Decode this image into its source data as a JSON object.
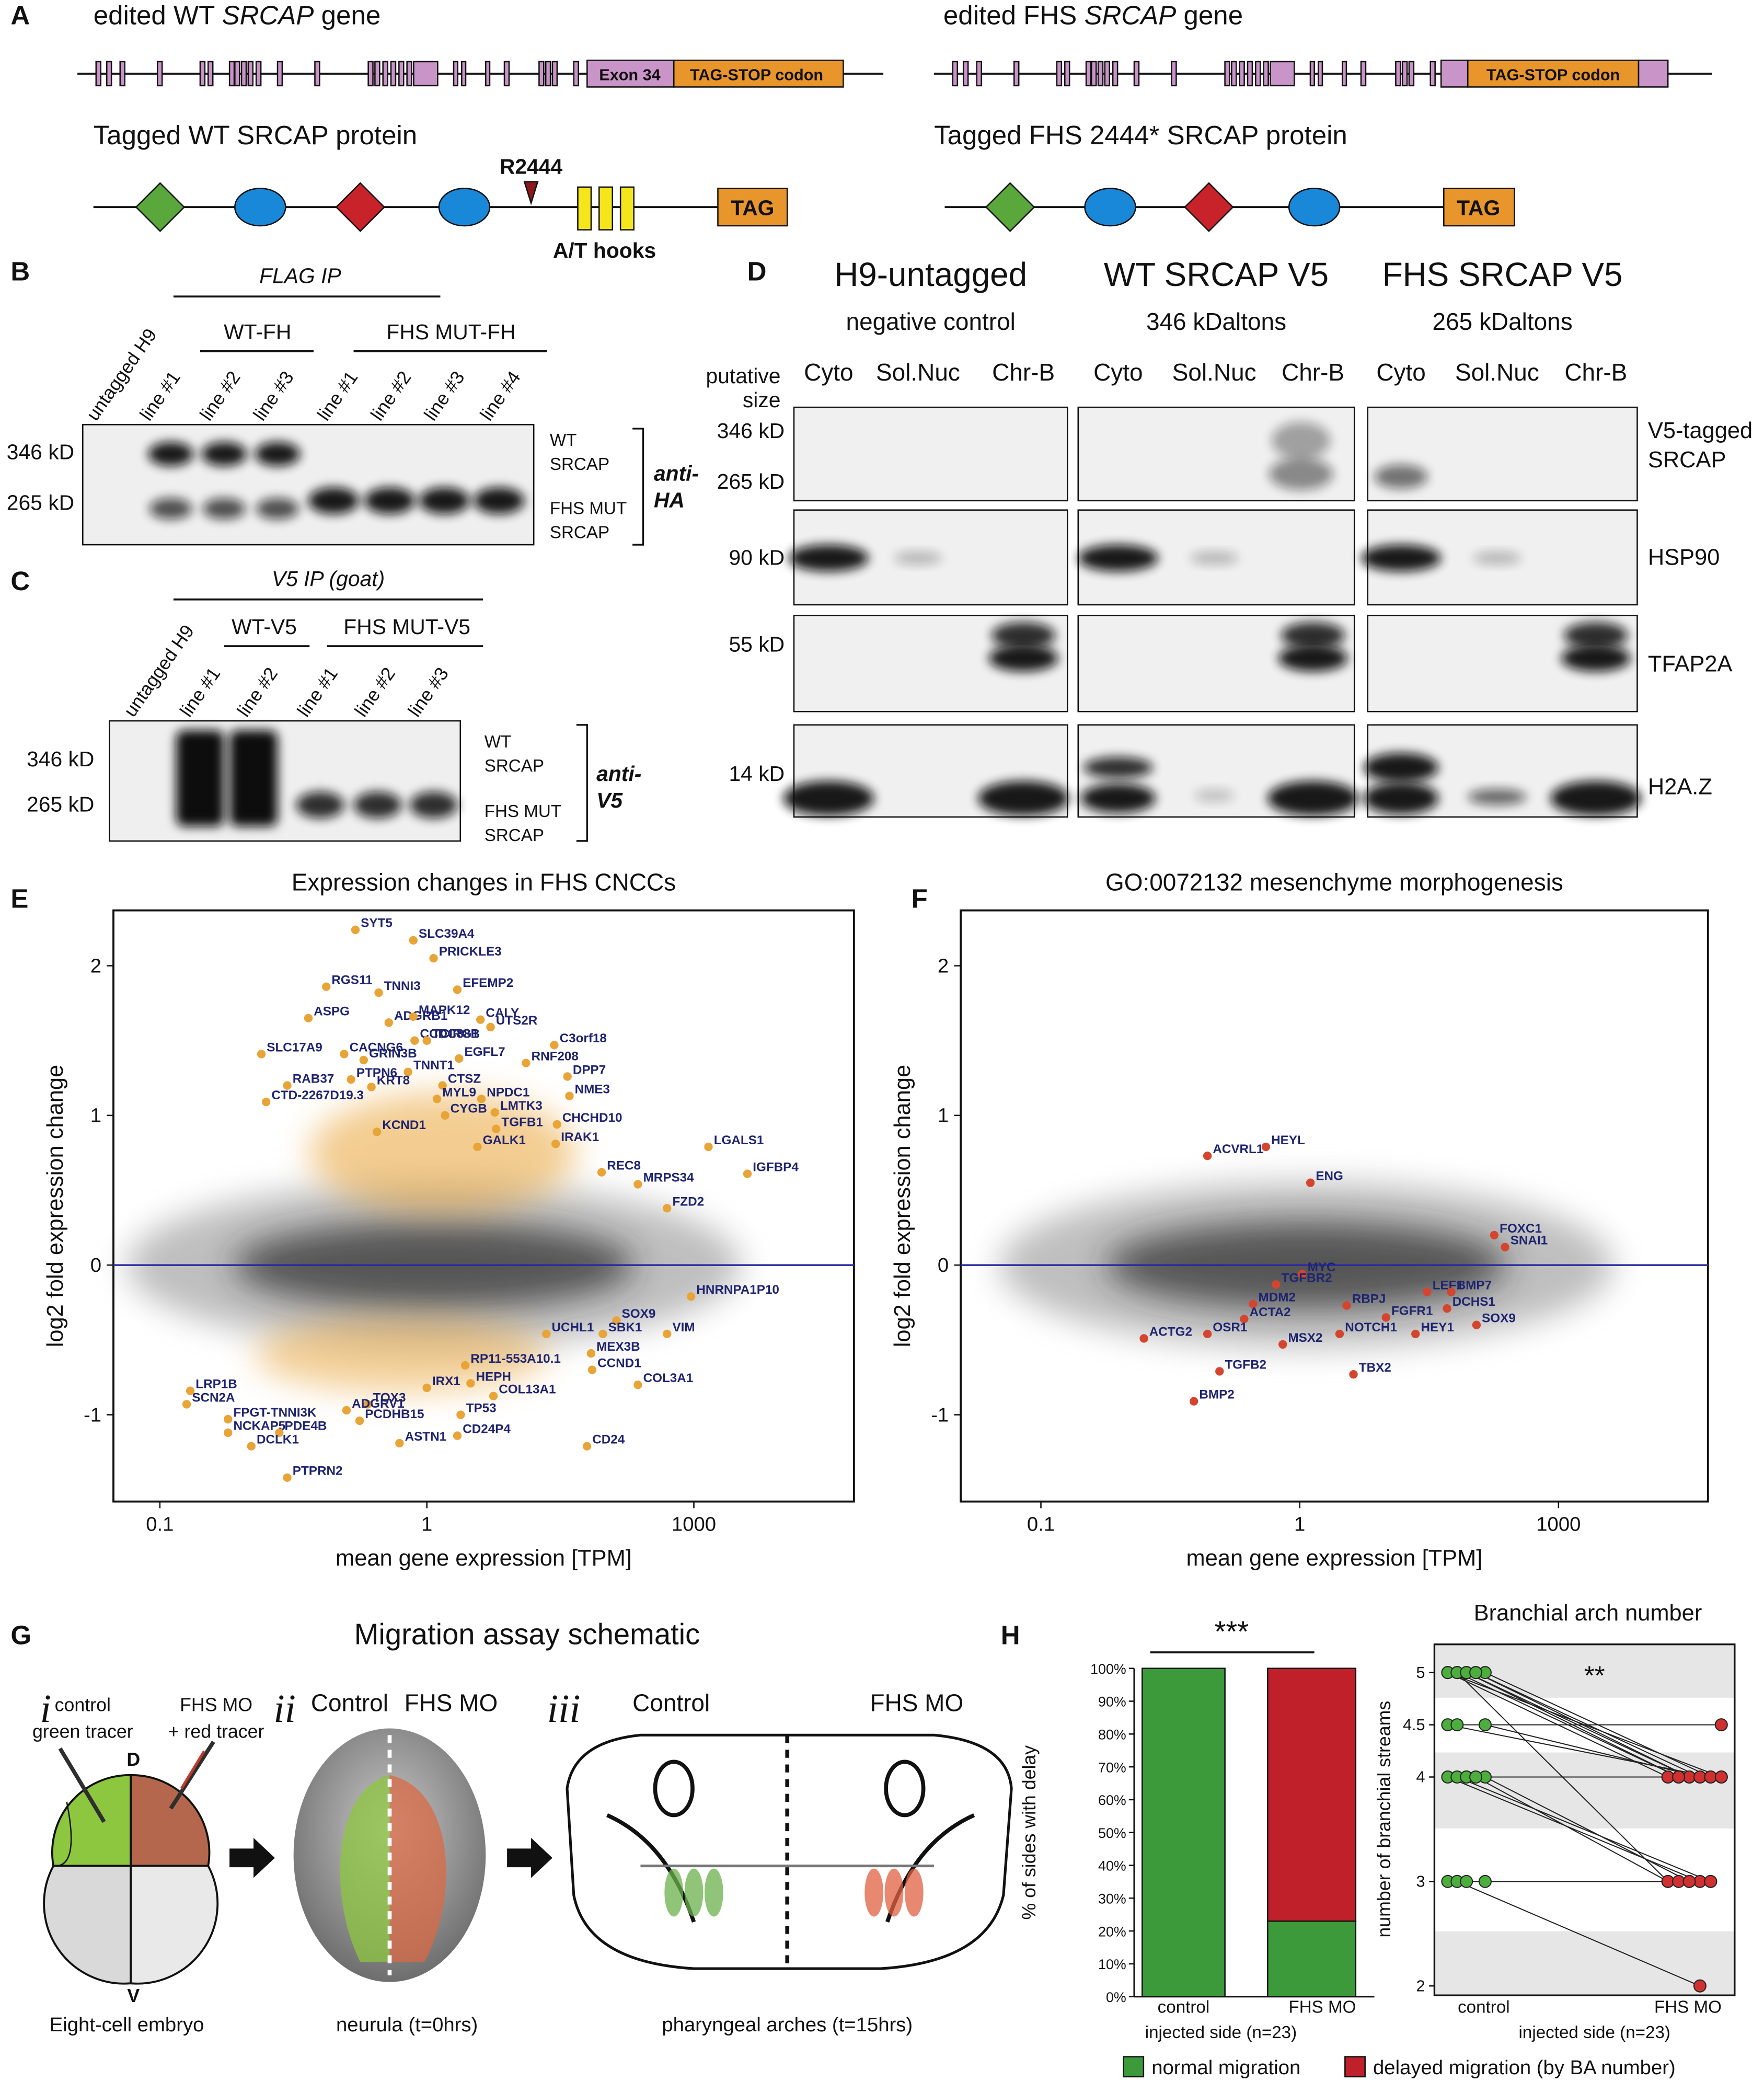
{
  "panel_labels": {
    "a": "A",
    "b": "B",
    "c": "C",
    "d": "D",
    "e": "E",
    "f": "F",
    "g": "G",
    "h": "H"
  },
  "panel_a": {
    "wt_gene": [
      "edited WT ",
      "SRCAP",
      " gene"
    ],
    "fhs_gene": [
      "edited FHS ",
      "SRCAP",
      " gene"
    ],
    "exon_label": "Exon 34",
    "tag_stop": "TAG-STOP codon",
    "fhs_tag_stop": "TAG-STOP codon",
    "wt_protein": "Tagged WT SRCAP protein",
    "fhs_protein": "Tagged FHS 2444* SRCAP protein",
    "r2444": "R2444",
    "at_hooks": "A/T hooks",
    "tag": "TAG",
    "fhs_tag": "TAG"
  },
  "panel_b": {
    "ip": "FLAG IP",
    "group_wt": "WT-FH",
    "group_fhs": "FHS MUT-FH",
    "lanes": [
      "untagged H9",
      "line #1",
      "line #2",
      "line #3",
      "line #1",
      "line #2",
      "line #3",
      "line #4"
    ],
    "size_346": "346 kD",
    "size_265": "265 kD",
    "wt_label": [
      "WT",
      "SRCAP"
    ],
    "fhs_label": [
      "FHS MUT",
      "SRCAP"
    ],
    "antibody": [
      "anti-",
      "HA"
    ]
  },
  "panel_c": {
    "ip": "V5 IP (goat)",
    "group_wt": "WT-V5",
    "group_fhs": "FHS MUT-V5",
    "lanes": [
      "untagged H9",
      "line #1",
      "line #2",
      "line #1",
      "line #2",
      "line #3"
    ],
    "size_346": "346 kD",
    "size_265": "265 kD",
    "wt_label": [
      "WT",
      "SRCAP"
    ],
    "fhs_label": [
      "FHS MUT",
      "SRCAP"
    ],
    "antibody": [
      "anti-",
      "V5"
    ]
  },
  "panel_d": {
    "columns": [
      {
        "title": "H9-untagged",
        "subtitle": "negative control"
      },
      {
        "title": "WT SRCAP V5",
        "subtitle": "346 kDaltons"
      },
      {
        "title": "FHS SRCAP V5",
        "subtitle": "265 kDaltons"
      }
    ],
    "size_header": [
      "putative",
      "size"
    ],
    "fractions": [
      [
        "Cyto",
        "Sol.Nuc",
        "Chr-B"
      ],
      [
        "Cyto",
        "Sol.Nuc",
        "Chr-B"
      ],
      [
        "Cyto",
        "Sol.Nuc",
        "Chr-B"
      ]
    ],
    "rows": [
      {
        "sizes": [
          "346 kD",
          "265 kD"
        ],
        "protein": [
          "V5-tagged",
          "SRCAP"
        ]
      },
      {
        "sizes": [
          "90 kD"
        ],
        "protein": [
          "HSP90"
        ]
      },
      {
        "sizes": [
          "55 kD"
        ],
        "protein": [
          "TFAP2A"
        ]
      },
      {
        "sizes": [
          "14 kD"
        ],
        "protein": [
          "H2A.Z"
        ]
      }
    ]
  },
  "panel_g": {
    "title": "Migration assay schematic",
    "steps": [
      "i",
      "ii",
      "iii"
    ],
    "control_tracer": [
      "control",
      "green tracer"
    ],
    "fhs_tracer": [
      "FHS MO",
      "+ red tracer"
    ],
    "dorsal": "D",
    "ventral": "V",
    "embryo": "Eight-cell embryo",
    "neurula_control": "Control",
    "neurula_fhs": "FHS MO",
    "neurula": "neurula (t=0hrs)",
    "arches_control": "Control",
    "arches_fhs": "FHS MO",
    "arches": "pharyngeal arches (t=15hrs)"
  },
  "chart_data": [
    {
      "type": "scatter",
      "title": "Expression changes in FHS CNCCs",
      "x_label": "mean gene expression [TPM]",
      "y_label": "log2 fold expression change",
      "x_scale": "log",
      "xlim": [
        0.067,
        63000
      ],
      "ylim": [
        -1.58,
        2.37
      ],
      "xticks": [
        0.1,
        1,
        1000
      ],
      "yticks": [
        -1,
        0,
        1,
        2
      ],
      "hline": 0,
      "line_color": "#2a2aa0",
      "color": "#e9a437",
      "label_color": "#1f2470",
      "labels": [
        "SYT5",
        "SLC39A4",
        "PRICKLE3",
        "RGS11",
        "TNNI3",
        "EFEMP2",
        "ASPG",
        "ADGRB1",
        "MAPK12",
        "CALY",
        "SLC17A9",
        "CACNG6",
        "CCDC88B",
        "TCIRG1",
        "UTS2R",
        "C3orf18",
        "EGFL7",
        "RNF208",
        "GRIN3B",
        "RAB37",
        "PTPN6",
        "TNNT1",
        "DPP7",
        "KRT8",
        "CTSZ",
        "MYL9",
        "NPDC1",
        "NME3",
        "CTD-2267D19.3",
        "CYGB",
        "LMTK3",
        "TGFB1",
        "CHCHD10",
        "KCND1",
        "IRAK1",
        "GALK1",
        "LGALS1",
        "REC8",
        "IGFBP4",
        "MRPS34",
        "FZD2",
        "HNRNPA1P10",
        "SOX9",
        "UCHL1",
        "SBK1",
        "VIM",
        "MEX3B",
        "RP11-553A10.1",
        "CCND1",
        "HEPH",
        "COL3A1",
        "COL13A1",
        "IRX1",
        "TOX3",
        "LRP1B",
        "SCN2A",
        "ADGRV1",
        "PCDHB15",
        "TP53",
        "FPGT-TNNI3K",
        "NCKAP5",
        "PDE4B",
        "CD24P4",
        "ASTN1",
        "DCLK1",
        "CD24",
        "PTPRN2"
      ],
      "x": [
        0.54,
        0.89,
        1.19,
        0.42,
        0.66,
        2.2,
        0.36,
        0.72,
        0.89,
        4.0,
        0.24,
        0.49,
        0.9,
        1.0,
        5.2,
        27,
        2.3,
        13,
        0.58,
        0.3,
        0.52,
        0.85,
        38,
        0.62,
        1.5,
        1.3,
        4.1,
        40,
        0.25,
        1.6,
        5.8,
        6.0,
        29,
        0.65,
        28,
        3.7,
        1460,
        92,
        4000,
        235,
        500,
        930,
        135,
        22,
        95,
        500,
        70,
        2.7,
        72,
        3.1,
        235,
        5.6,
        1.0,
        0.6,
        0.13,
        0.126,
        0.5,
        0.56,
        2.4,
        0.18,
        0.18,
        0.28,
        2.2,
        0.79,
        0.22,
        63,
        0.3
      ],
      "values": [
        2.24,
        2.17,
        2.05,
        1.86,
        1.82,
        1.84,
        1.65,
        1.62,
        1.66,
        1.64,
        1.41,
        1.41,
        1.5,
        1.5,
        1.59,
        1.47,
        1.38,
        1.35,
        1.37,
        1.2,
        1.24,
        1.29,
        1.26,
        1.19,
        1.2,
        1.11,
        1.11,
        1.13,
        1.09,
        1.0,
        1.02,
        0.91,
        0.94,
        0.89,
        0.81,
        0.79,
        0.79,
        0.62,
        0.61,
        0.54,
        0.38,
        -0.21,
        -0.37,
        -0.46,
        -0.46,
        -0.46,
        -0.59,
        -0.67,
        -0.7,
        -0.79,
        -0.8,
        -0.875,
        -0.82,
        -0.93,
        -0.84,
        -0.93,
        -0.97,
        -1.04,
        -1.0,
        -1.03,
        -1.12,
        -1.12,
        -1.14,
        -1.19,
        -1.21,
        -1.21,
        -1.42
      ]
    },
    {
      "type": "scatter",
      "title": "GO:0072132 mesenchyme morphogenesis",
      "x_label": "mean gene expression [TPM]",
      "y_label": "log2 fold expression change",
      "x_scale": "log",
      "xlim": [
        0.049,
        54000
      ],
      "ylim": [
        -1.58,
        2.37
      ],
      "xticks": [
        0.1,
        1,
        1000
      ],
      "yticks": [
        -1,
        0,
        1,
        2
      ],
      "hline": 0,
      "line_color": "#2a2aa0",
      "color": "#d4452f",
      "label_color": "#1f2470",
      "labels": [
        "HEYL",
        "ACVRL1",
        "ENG",
        "FOXC1",
        "SNAI1",
        "MYC",
        "TGFBR2",
        "LEF1",
        "BMP7",
        "MDM2",
        "RBPJ",
        "DCHS1",
        "FGFR1",
        "ACTA2",
        "SOX9",
        "NOTCH1",
        "HEY1",
        "ACTG2",
        "OSR1",
        "MSX2",
        "TGFB2",
        "TBX2",
        "BMP2"
      ],
      "x": [
        0.74,
        0.44,
        1.33,
        180,
        240,
        1.07,
        0.81,
        30,
        57,
        0.66,
        3.5,
        51,
        10,
        0.61,
        112,
        2.9,
        22,
        0.25,
        0.44,
        0.86,
        0.49,
        4.2,
        0.39
      ],
      "values": [
        0.79,
        0.73,
        0.55,
        0.2,
        0.12,
        -0.06,
        -0.13,
        -0.18,
        -0.18,
        -0.26,
        -0.27,
        -0.29,
        -0.35,
        -0.36,
        -0.4,
        -0.46,
        -0.46,
        -0.49,
        -0.46,
        -0.53,
        -0.71,
        -0.73,
        -0.91
      ]
    },
    {
      "type": "stacked-bar",
      "y_label": "% of sides with delay",
      "significance": "***",
      "categories": [
        "control",
        "FHS MO"
      ],
      "x_label": "injected side (n=23)",
      "ylim": [
        0,
        100
      ],
      "yticks": [
        {
          "value": 0,
          "label": "0%"
        },
        {
          "value": 10,
          "label": "10%"
        },
        {
          "value": 20,
          "label": "20%"
        },
        {
          "value": 30,
          "label": "30%"
        },
        {
          "value": 40,
          "label": "40%"
        },
        {
          "value": 50,
          "label": "50%"
        },
        {
          "value": 60,
          "label": "60%"
        },
        {
          "value": 70,
          "label": "70%"
        },
        {
          "value": 80,
          "label": "80%"
        },
        {
          "value": 90,
          "label": "90%"
        },
        {
          "value": 100,
          "label": "100%"
        }
      ],
      "series": [
        {
          "name": "normal migration",
          "color": "#3c9a3a",
          "values": [
            100,
            23
          ]
        },
        {
          "name": "delayed migration (by BA number)",
          "color": "#c0202a",
          "values": [
            0,
            77
          ]
        }
      ]
    },
    {
      "type": "paired-dot",
      "title": "Branchial arch number",
      "y_label": "number of branchial streams",
      "significance": "**",
      "categories": [
        "control",
        "FHS MO"
      ],
      "x_label": "injected side (n=23)",
      "ylim": [
        1.91,
        5.27
      ],
      "yticks": [
        2,
        3,
        4,
        4.5,
        5
      ],
      "colors": [
        "#4caf3c",
        "#d0302f"
      ],
      "values": [
        [
          5,
          4
        ],
        [
          5,
          4
        ],
        [
          5,
          4
        ],
        [
          5,
          4
        ],
        [
          5,
          4
        ],
        [
          5,
          4
        ],
        [
          5,
          3
        ],
        [
          5,
          4
        ],
        [
          5,
          4
        ],
        [
          4.5,
          4
        ],
        [
          4.5,
          4
        ],
        [
          4.5,
          4.5
        ],
        [
          4,
          4
        ],
        [
          4,
          4
        ],
        [
          4,
          3
        ],
        [
          4,
          3
        ],
        [
          4,
          3
        ],
        [
          4,
          4
        ],
        [
          4,
          3
        ],
        [
          3,
          3
        ],
        [
          3,
          3
        ],
        [
          3,
          2
        ],
        [
          3,
          3
        ]
      ]
    }
  ]
}
